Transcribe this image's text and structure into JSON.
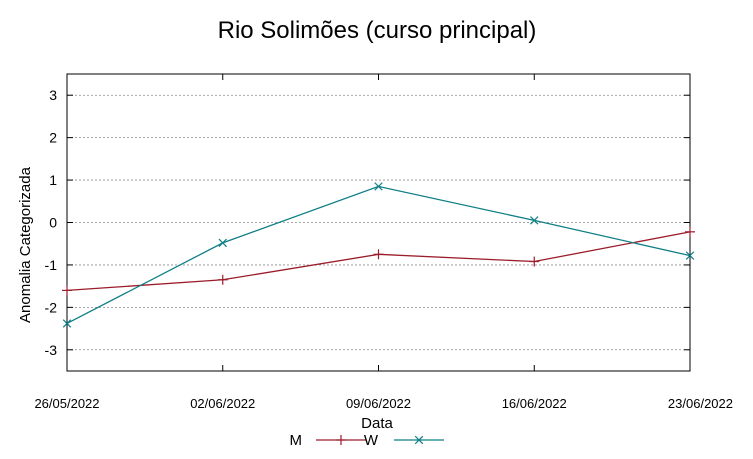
{
  "chart_data": {
    "type": "line",
    "title": "Rio Solimões (curso principal)",
    "xlabel": "Data",
    "ylabel": "Anomalia Categorizada",
    "x": [
      "26/05/2022",
      "02/06/2022",
      "09/06/2022",
      "16/06/2022",
      "23/06/2022"
    ],
    "yticks": [
      -3,
      -2,
      -1,
      0,
      1,
      2,
      3
    ],
    "ylim": [
      -3.5,
      3.5
    ],
    "grid": true,
    "legend_position": "bottom",
    "series": [
      {
        "name": "M",
        "color": "#9b1c2a",
        "marker": "plus",
        "values": [
          -1.6,
          -1.35,
          -0.75,
          -0.92,
          -0.22
        ]
      },
      {
        "name": "W",
        "color": "#0e7f86",
        "marker": "cross",
        "values": [
          -2.38,
          -0.48,
          0.85,
          0.05,
          -0.78
        ]
      }
    ]
  }
}
